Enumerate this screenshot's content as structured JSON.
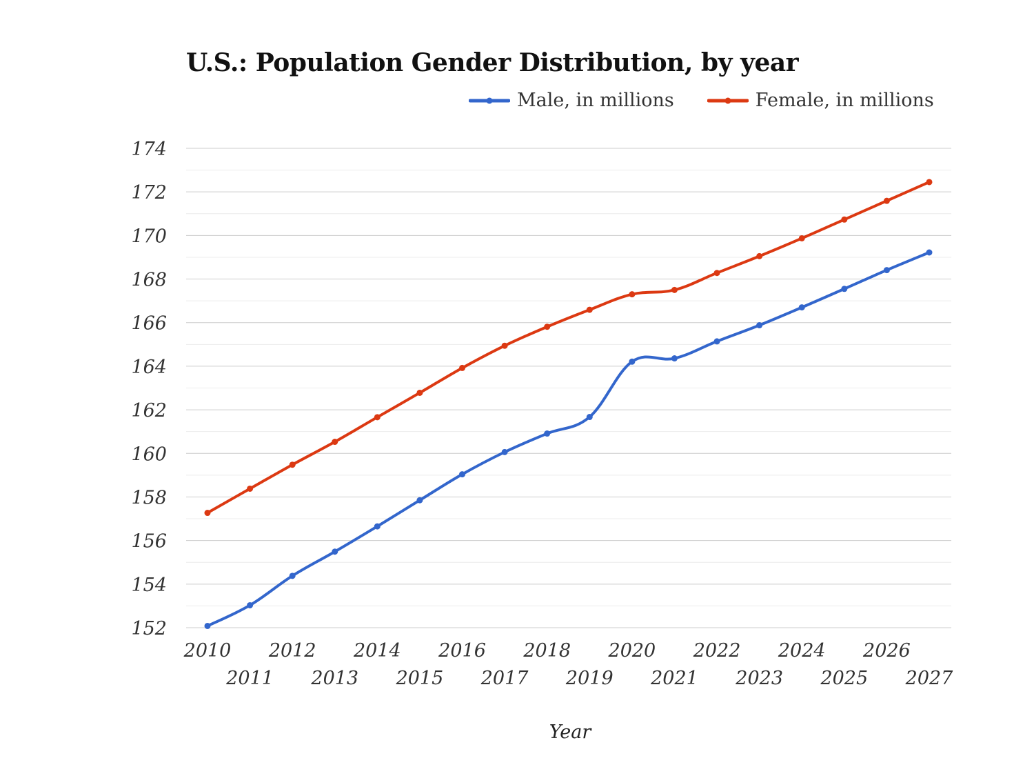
{
  "chart_data": {
    "type": "line",
    "title": "U.S.: Population Gender Distribution, by year",
    "xlabel": "Year",
    "ylabel": "",
    "ylim": [
      152,
      174
    ],
    "yticks": [
      152,
      154,
      156,
      158,
      160,
      162,
      164,
      166,
      168,
      170,
      172,
      174
    ],
    "grid": "horizontal",
    "legend_position": "top-right",
    "categories": [
      "2010",
      "2011",
      "2012",
      "2013",
      "2014",
      "2015",
      "2016",
      "2017",
      "2018",
      "2019",
      "2020",
      "2021",
      "2022",
      "2023",
      "2024",
      "2025",
      "2026",
      "2027"
    ],
    "series": [
      {
        "name": "Male, in millions",
        "color": "#3366cc",
        "values": [
          152.08,
          153.03,
          154.38,
          155.49,
          156.65,
          157.85,
          159.04,
          160.06,
          160.91,
          161.67,
          164.21,
          164.36,
          165.14,
          165.88,
          166.7,
          167.55,
          168.41,
          169.22
        ]
      },
      {
        "name": "Female, in millions",
        "color": "#dc3912",
        "values": [
          157.27,
          158.38,
          159.48,
          160.53,
          161.66,
          162.78,
          163.92,
          164.94,
          165.81,
          166.59,
          167.3,
          167.5,
          168.28,
          169.05,
          169.87,
          170.73,
          171.59,
          172.45
        ]
      }
    ]
  }
}
